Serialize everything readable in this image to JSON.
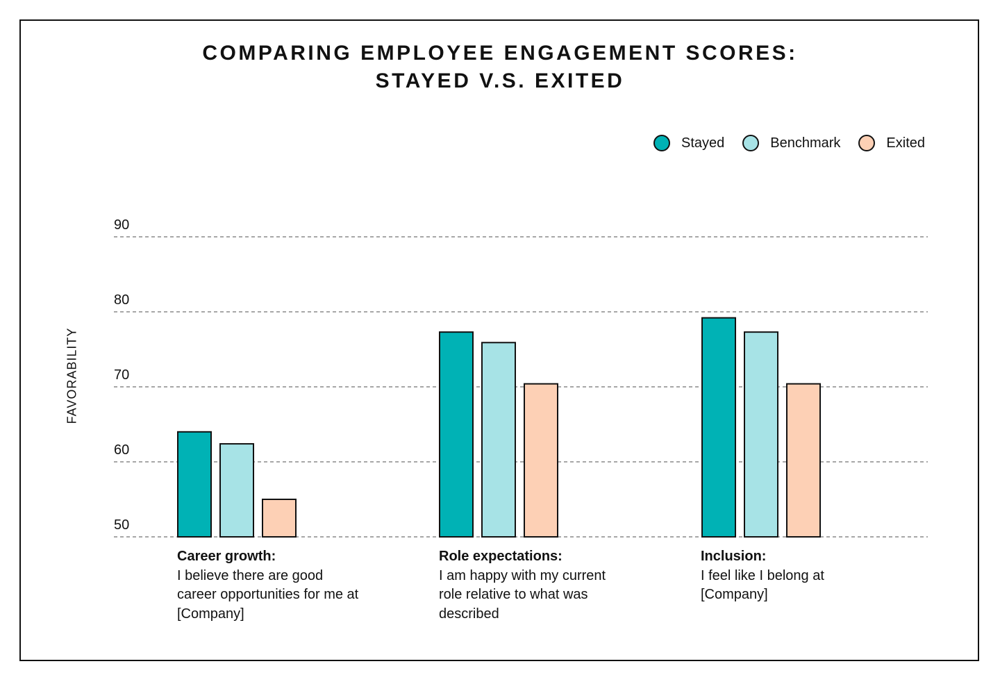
{
  "title_line1": "COMPARING EMPLOYEE ENGAGEMENT SCORES:",
  "title_line2": "STAYED V.S. EXITED",
  "legend": [
    {
      "name": "Stayed",
      "color": "#00b2b5"
    },
    {
      "name": "Benchmark",
      "color": "#a7e3e6"
    },
    {
      "name": "Exited",
      "color": "#fdd0b5"
    }
  ],
  "categories": [
    {
      "title": "Career growth:",
      "description": "I believe there are good career opportunities for me at [Company]"
    },
    {
      "title": "Role expectations:",
      "description": "I am happy with my current role relative to what was described"
    },
    {
      "title": "Inclusion:",
      "description": "I feel like I belong at [Company]"
    }
  ],
  "chart_data": {
    "type": "bar",
    "categories": [
      "Career growth",
      "Role expectations",
      "Inclusion"
    ],
    "series": [
      {
        "name": "Stayed",
        "values": [
          64,
          77.3,
          79.2
        ],
        "color": "#00b2b5"
      },
      {
        "name": "Benchmark",
        "values": [
          62.4,
          75.9,
          77.3
        ],
        "color": "#a7e3e6"
      },
      {
        "name": "Exited",
        "values": [
          55,
          70.4,
          70.4
        ],
        "color": "#fdd0b5"
      }
    ],
    "ylabel": "FAVORABILITY",
    "ylim": [
      50,
      90
    ],
    "yticks": [
      50,
      60,
      70,
      80,
      90
    ],
    "grid": true,
    "legend_position": "top-right"
  }
}
